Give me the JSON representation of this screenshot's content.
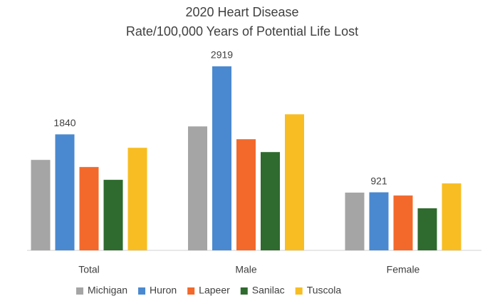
{
  "chart_data": {
    "type": "bar",
    "title": [
      "2020 Heart Disease",
      "Rate/100,000 Years of Potential Life Lost"
    ],
    "categories": [
      "Total",
      "Male",
      "Female"
    ],
    "series": [
      {
        "name": "Michigan",
        "color": "#a5a5a5",
        "values": [
          1435,
          1966,
          916
        ]
      },
      {
        "name": "Huron",
        "color": "#4a89cf",
        "values": [
          1840,
          2919,
          921
        ],
        "show_labels": true
      },
      {
        "name": "Lapeer",
        "color": "#f2692b",
        "values": [
          1322,
          1763,
          870
        ]
      },
      {
        "name": "Sanilac",
        "color": "#2f6a2f",
        "values": [
          1119,
          1559,
          667
        ]
      },
      {
        "name": "Tuscola",
        "color": "#f7bd22",
        "values": [
          1627,
          2158,
          1062
        ]
      }
    ],
    "legend": "bottom"
  }
}
